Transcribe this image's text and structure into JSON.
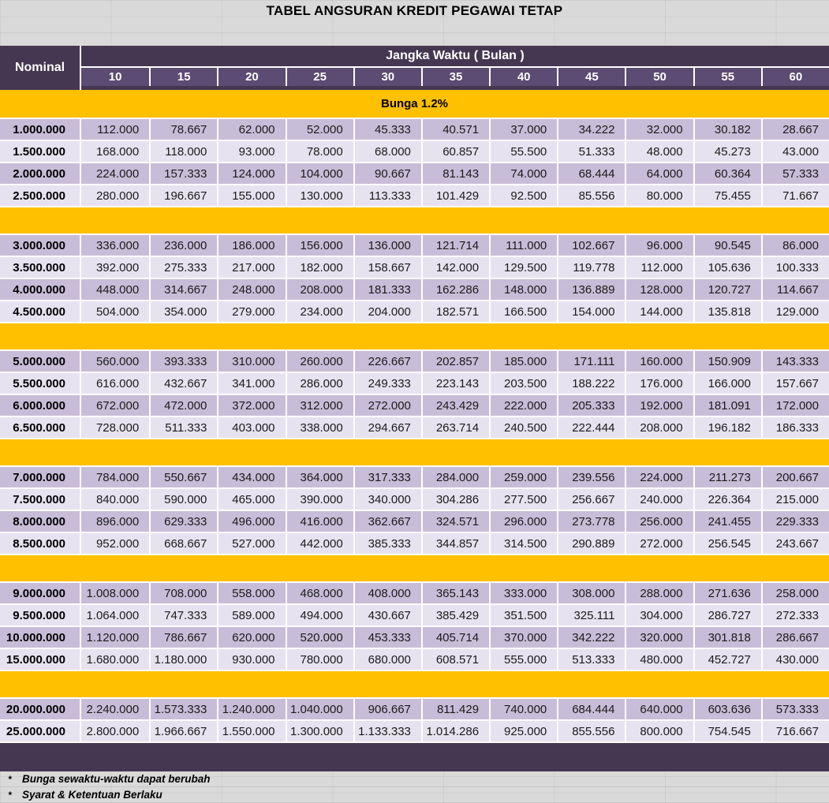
{
  "title": "TABEL ANGSURAN KREDIT PEGAWAI TETAP",
  "table": {
    "nominal_header": "Nominal",
    "period_header": "Jangka Waktu ( Bulan )",
    "months": [
      "10",
      "15",
      "20",
      "25",
      "30",
      "35",
      "40",
      "45",
      "50",
      "55",
      "60"
    ],
    "interest_banner": "Bunga 1.2%",
    "groups": [
      {
        "rows": [
          {
            "nominal": "1.000.000",
            "values": [
              "112.000",
              "78.667",
              "62.000",
              "52.000",
              "45.333",
              "40.571",
              "37.000",
              "34.222",
              "32.000",
              "30.182",
              "28.667"
            ]
          },
          {
            "nominal": "1.500.000",
            "values": [
              "168.000",
              "118.000",
              "93.000",
              "78.000",
              "68.000",
              "60.857",
              "55.500",
              "51.333",
              "48.000",
              "45.273",
              "43.000"
            ]
          },
          {
            "nominal": "2.000.000",
            "values": [
              "224.000",
              "157.333",
              "124.000",
              "104.000",
              "90.667",
              "81.143",
              "74.000",
              "68.444",
              "64.000",
              "60.364",
              "57.333"
            ]
          },
          {
            "nominal": "2.500.000",
            "values": [
              "280.000",
              "196.667",
              "155.000",
              "130.000",
              "113.333",
              "101.429",
              "92.500",
              "85.556",
              "80.000",
              "75.455",
              "71.667"
            ]
          }
        ]
      },
      {
        "rows": [
          {
            "nominal": "3.000.000",
            "values": [
              "336.000",
              "236.000",
              "186.000",
              "156.000",
              "136.000",
              "121.714",
              "111.000",
              "102.667",
              "96.000",
              "90.545",
              "86.000"
            ]
          },
          {
            "nominal": "3.500.000",
            "values": [
              "392.000",
              "275.333",
              "217.000",
              "182.000",
              "158.667",
              "142.000",
              "129.500",
              "119.778",
              "112.000",
              "105.636",
              "100.333"
            ]
          },
          {
            "nominal": "4.000.000",
            "values": [
              "448.000",
              "314.667",
              "248.000",
              "208.000",
              "181.333",
              "162.286",
              "148.000",
              "136.889",
              "128.000",
              "120.727",
              "114.667"
            ]
          },
          {
            "nominal": "4.500.000",
            "values": [
              "504.000",
              "354.000",
              "279.000",
              "234.000",
              "204.000",
              "182.571",
              "166.500",
              "154.000",
              "144.000",
              "135.818",
              "129.000"
            ]
          }
        ]
      },
      {
        "rows": [
          {
            "nominal": "5.000.000",
            "values": [
              "560.000",
              "393.333",
              "310.000",
              "260.000",
              "226.667",
              "202.857",
              "185.000",
              "171.111",
              "160.000",
              "150.909",
              "143.333"
            ]
          },
          {
            "nominal": "5.500.000",
            "values": [
              "616.000",
              "432.667",
              "341.000",
              "286.000",
              "249.333",
              "223.143",
              "203.500",
              "188.222",
              "176.000",
              "166.000",
              "157.667"
            ]
          },
          {
            "nominal": "6.000.000",
            "values": [
              "672.000",
              "472.000",
              "372.000",
              "312.000",
              "272.000",
              "243.429",
              "222.000",
              "205.333",
              "192.000",
              "181.091",
              "172.000"
            ]
          },
          {
            "nominal": "6.500.000",
            "values": [
              "728.000",
              "511.333",
              "403.000",
              "338.000",
              "294.667",
              "263.714",
              "240.500",
              "222.444",
              "208.000",
              "196.182",
              "186.333"
            ]
          }
        ]
      },
      {
        "rows": [
          {
            "nominal": "7.000.000",
            "values": [
              "784.000",
              "550.667",
              "434.000",
              "364.000",
              "317.333",
              "284.000",
              "259.000",
              "239.556",
              "224.000",
              "211.273",
              "200.667"
            ]
          },
          {
            "nominal": "7.500.000",
            "values": [
              "840.000",
              "590.000",
              "465.000",
              "390.000",
              "340.000",
              "304.286",
              "277.500",
              "256.667",
              "240.000",
              "226.364",
              "215.000"
            ]
          },
          {
            "nominal": "8.000.000",
            "values": [
              "896.000",
              "629.333",
              "496.000",
              "416.000",
              "362.667",
              "324.571",
              "296.000",
              "273.778",
              "256.000",
              "241.455",
              "229.333"
            ]
          },
          {
            "nominal": "8.500.000",
            "values": [
              "952.000",
              "668.667",
              "527.000",
              "442.000",
              "385.333",
              "344.857",
              "314.500",
              "290.889",
              "272.000",
              "256.545",
              "243.667"
            ]
          }
        ]
      },
      {
        "rows": [
          {
            "nominal": "9.000.000",
            "values": [
              "1.008.000",
              "708.000",
              "558.000",
              "468.000",
              "408.000",
              "365.143",
              "333.000",
              "308.000",
              "288.000",
              "271.636",
              "258.000"
            ]
          },
          {
            "nominal": "9.500.000",
            "values": [
              "1.064.000",
              "747.333",
              "589.000",
              "494.000",
              "430.667",
              "385.429",
              "351.500",
              "325.111",
              "304.000",
              "286.727",
              "272.333"
            ]
          },
          {
            "nominal": "10.000.000",
            "values": [
              "1.120.000",
              "786.667",
              "620.000",
              "520.000",
              "453.333",
              "405.714",
              "370.000",
              "342.222",
              "320.000",
              "301.818",
              "286.667"
            ]
          },
          {
            "nominal": "15.000.000",
            "values": [
              "1.680.000",
              "1.180.000",
              "930.000",
              "780.000",
              "680.000",
              "608.571",
              "555.000",
              "513.333",
              "480.000",
              "452.727",
              "430.000"
            ]
          }
        ]
      },
      {
        "rows": [
          {
            "nominal": "20.000.000",
            "values": [
              "2.240.000",
              "1.573.333",
              "1.240.000",
              "1.040.000",
              "906.667",
              "811.429",
              "740.000",
              "684.444",
              "640.000",
              "603.636",
              "573.333"
            ]
          },
          {
            "nominal": "25.000.000",
            "values": [
              "2.800.000",
              "1.966.667",
              "1.550.000",
              "1.300.000",
              "1.133.333",
              "1.014.286",
              "925.000",
              "855.556",
              "800.000",
              "754.545",
              "716.667"
            ]
          }
        ]
      }
    ]
  },
  "footnotes": [
    {
      "marker": "*",
      "text": "Bunga sewaktu-waktu dapat berubah"
    },
    {
      "marker": "*",
      "text": "Syarat & Ketentuan Berlaku"
    }
  ],
  "colors": {
    "gold": "#FFC000",
    "header_purple": "#453751",
    "subheader_purple": "#5C4B72",
    "row_dark": "#C8BDD8",
    "row_light": "#E7E2EF",
    "background_gray": "#D9D9D9"
  }
}
